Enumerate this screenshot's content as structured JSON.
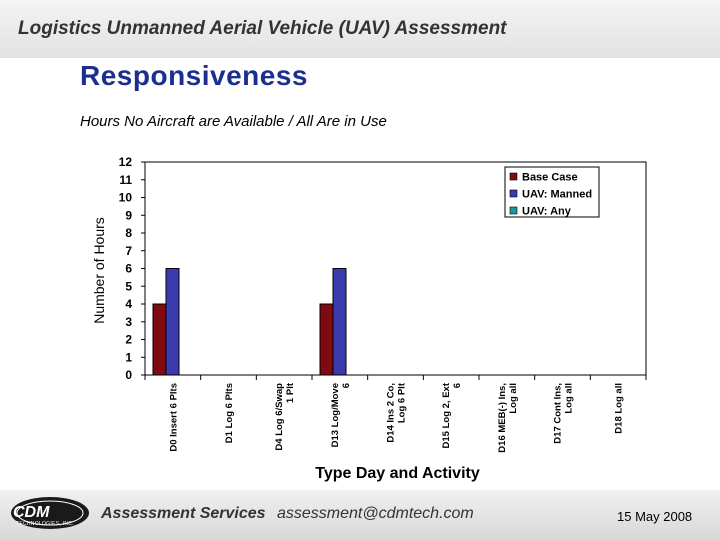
{
  "header": {
    "title": "Logistics Unmanned Aerial Vehicle (UAV) Assessment"
  },
  "slide": {
    "title": "Responsiveness",
    "subtitle": "Hours No Aircraft are Available / All Are in Use"
  },
  "footer": {
    "logo_text": "CDM",
    "logo_sub": "TECHNOLOGIES, INC.",
    "services": "Assessment Services",
    "email": "assessment@cdmtech.com",
    "date": "15 May 2008"
  },
  "colors": {
    "base_case": "#7f0a10",
    "uav_manned": "#3b3bb0",
    "uav_any": "#1a9a9a",
    "header": "#1a2f8f"
  },
  "chart_data": {
    "type": "bar",
    "xlabel": "Type Day and Activity",
    "ylabel": "Number of Hours",
    "ylim": [
      0,
      12
    ],
    "yticks": [
      0,
      1,
      2,
      3,
      4,
      5,
      6,
      7,
      8,
      9,
      10,
      11,
      12
    ],
    "grid": false,
    "legend_position": "top-right",
    "categories": [
      [
        "D0 Insert 6 Plts"
      ],
      [
        "D1 Log 6 Plts"
      ],
      [
        "D4 Log 6/Swap",
        "1 Plt"
      ],
      [
        "D13 Log/Move",
        "6"
      ],
      [
        "D14 Ins 2 Co,",
        "Log 6 Plt"
      ],
      [
        "D15 Log 2, Ext",
        "6"
      ],
      [
        "D16 MEB(-) Ins,",
        "Log all"
      ],
      [
        "D17 Cont Ins,",
        "Log all"
      ],
      [
        "D18 Log all"
      ]
    ],
    "series": [
      {
        "name": "Base Case",
        "values": [
          4,
          0,
          0,
          4,
          0,
          0,
          0,
          0,
          0
        ]
      },
      {
        "name": "UAV: Manned",
        "values": [
          6,
          0,
          0,
          6,
          0,
          0,
          0,
          0,
          0
        ]
      },
      {
        "name": "UAV: Any",
        "values": [
          0,
          0,
          0,
          0,
          0,
          0,
          0,
          0,
          0
        ]
      }
    ]
  }
}
